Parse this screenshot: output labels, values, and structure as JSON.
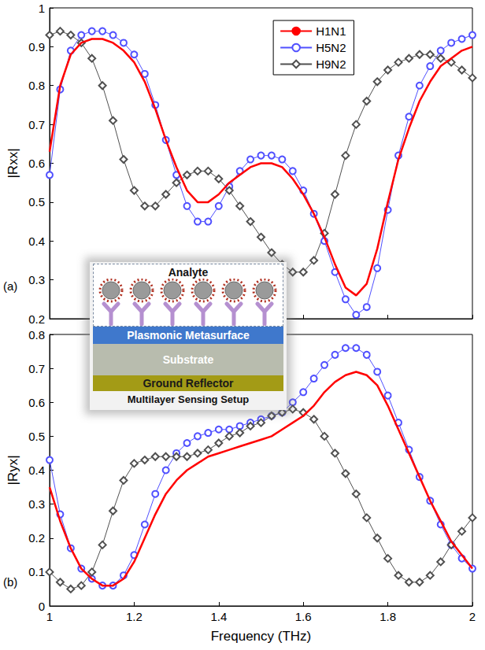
{
  "chart_data": [
    {
      "type": "line",
      "label": "(a)",
      "ylabel": "|Rxx|",
      "x": [
        1,
        1.025,
        1.05,
        1.075,
        1.1,
        1.125,
        1.15,
        1.175,
        1.2,
        1.225,
        1.25,
        1.275,
        1.3,
        1.325,
        1.35,
        1.375,
        1.4,
        1.425,
        1.45,
        1.475,
        1.5,
        1.525,
        1.55,
        1.575,
        1.6,
        1.625,
        1.65,
        1.675,
        1.7,
        1.725,
        1.75,
        1.775,
        1.8,
        1.825,
        1.85,
        1.875,
        1.9,
        1.925,
        1.95,
        1.975,
        2
      ],
      "series": [
        {
          "name": "H1N1",
          "color": "#ff0000",
          "marker": "none",
          "line_style": "solid",
          "values": [
            0.63,
            0.8,
            0.88,
            0.91,
            0.92,
            0.92,
            0.91,
            0.89,
            0.86,
            0.81,
            0.74,
            0.66,
            0.59,
            0.53,
            0.5,
            0.5,
            0.52,
            0.55,
            0.57,
            0.59,
            0.6,
            0.6,
            0.59,
            0.56,
            0.52,
            0.47,
            0.41,
            0.34,
            0.28,
            0.26,
            0.29,
            0.38,
            0.5,
            0.61,
            0.69,
            0.76,
            0.81,
            0.85,
            0.87,
            0.89,
            0.9
          ]
        },
        {
          "name": "H5N2",
          "color": "#5050ff",
          "marker": "circle",
          "line_style": "solid",
          "values": [
            0.57,
            0.79,
            0.89,
            0.93,
            0.94,
            0.94,
            0.93,
            0.91,
            0.88,
            0.83,
            0.75,
            0.66,
            0.57,
            0.49,
            0.45,
            0.45,
            0.49,
            0.54,
            0.58,
            0.61,
            0.62,
            0.62,
            0.61,
            0.58,
            0.53,
            0.47,
            0.4,
            0.32,
            0.25,
            0.21,
            0.23,
            0.33,
            0.48,
            0.62,
            0.72,
            0.8,
            0.85,
            0.89,
            0.91,
            0.92,
            0.93
          ]
        },
        {
          "name": "H9N2",
          "color": "#505050",
          "marker": "diamond",
          "line_style": "solid",
          "values": [
            0.93,
            0.94,
            0.93,
            0.91,
            0.87,
            0.8,
            0.71,
            0.61,
            0.53,
            0.49,
            0.49,
            0.52,
            0.55,
            0.57,
            0.58,
            0.58,
            0.56,
            0.53,
            0.49,
            0.45,
            0.41,
            0.37,
            0.34,
            0.32,
            0.32,
            0.35,
            0.42,
            0.52,
            0.62,
            0.7,
            0.76,
            0.81,
            0.84,
            0.86,
            0.87,
            0.88,
            0.88,
            0.87,
            0.86,
            0.84,
            0.82
          ]
        }
      ],
      "xlim": [
        1,
        2
      ],
      "xticks": [
        1,
        1.2,
        1.4,
        1.6,
        1.8,
        2
      ],
      "ylim": [
        0.2,
        1
      ],
      "yticks": [
        0.2,
        0.3,
        0.4,
        0.5,
        0.6,
        0.7,
        0.8,
        0.9,
        1
      ],
      "grid": false,
      "legend": "upper right",
      "tick_labels": "y"
    },
    {
      "type": "line",
      "label": "(b)",
      "ylabel": "|Ryx|",
      "xlabel": "Frequency (THz)",
      "x": [
        1,
        1.025,
        1.05,
        1.075,
        1.1,
        1.125,
        1.15,
        1.175,
        1.2,
        1.225,
        1.25,
        1.275,
        1.3,
        1.325,
        1.35,
        1.375,
        1.4,
        1.425,
        1.45,
        1.475,
        1.5,
        1.525,
        1.55,
        1.575,
        1.6,
        1.625,
        1.65,
        1.675,
        1.7,
        1.725,
        1.75,
        1.775,
        1.8,
        1.825,
        1.85,
        1.875,
        1.9,
        1.925,
        1.95,
        1.975,
        2
      ],
      "series": [
        {
          "name": "H1N1",
          "color": "#ff0000",
          "marker": "none",
          "line_style": "solid",
          "values": [
            0.35,
            0.25,
            0.17,
            0.11,
            0.08,
            0.06,
            0.06,
            0.08,
            0.13,
            0.2,
            0.27,
            0.33,
            0.37,
            0.4,
            0.42,
            0.44,
            0.45,
            0.46,
            0.47,
            0.48,
            0.49,
            0.5,
            0.52,
            0.54,
            0.56,
            0.59,
            0.63,
            0.66,
            0.68,
            0.69,
            0.68,
            0.65,
            0.59,
            0.52,
            0.45,
            0.38,
            0.31,
            0.25,
            0.19,
            0.15,
            0.11
          ]
        },
        {
          "name": "H5N2",
          "color": "#5050ff",
          "marker": "circle",
          "line_style": "solid",
          "values": [
            0.43,
            0.27,
            0.17,
            0.11,
            0.08,
            0.06,
            0.06,
            0.09,
            0.15,
            0.24,
            0.33,
            0.4,
            0.45,
            0.48,
            0.5,
            0.51,
            0.52,
            0.52,
            0.53,
            0.54,
            0.55,
            0.56,
            0.57,
            0.6,
            0.63,
            0.67,
            0.71,
            0.74,
            0.76,
            0.76,
            0.74,
            0.69,
            0.62,
            0.54,
            0.46,
            0.38,
            0.31,
            0.24,
            0.18,
            0.14,
            0.11
          ]
        },
        {
          "name": "H9N2",
          "color": "#505050",
          "marker": "diamond",
          "line_style": "solid",
          "values": [
            0.1,
            0.07,
            0.05,
            0.06,
            0.1,
            0.18,
            0.28,
            0.37,
            0.42,
            0.43,
            0.44,
            0.44,
            0.44,
            0.44,
            0.45,
            0.46,
            0.48,
            0.5,
            0.51,
            0.53,
            0.54,
            0.56,
            0.57,
            0.58,
            0.57,
            0.55,
            0.5,
            0.45,
            0.39,
            0.33,
            0.26,
            0.2,
            0.14,
            0.09,
            0.07,
            0.07,
            0.09,
            0.13,
            0.18,
            0.22,
            0.26
          ]
        }
      ],
      "xlim": [
        1,
        2
      ],
      "xticks": [
        1,
        1.2,
        1.4,
        1.6,
        1.8,
        2
      ],
      "ylim": [
        0,
        0.8
      ],
      "yticks": [
        0,
        0.1,
        0.2,
        0.3,
        0.4,
        0.5,
        0.6,
        0.7,
        0.8
      ],
      "grid": false
    }
  ],
  "inset": {
    "title": "Analyte",
    "layers": [
      "Plasmonic Metasurface",
      "Substrate",
      "Ground Reflector"
    ],
    "caption": "Multilayer Sensing Setup"
  }
}
